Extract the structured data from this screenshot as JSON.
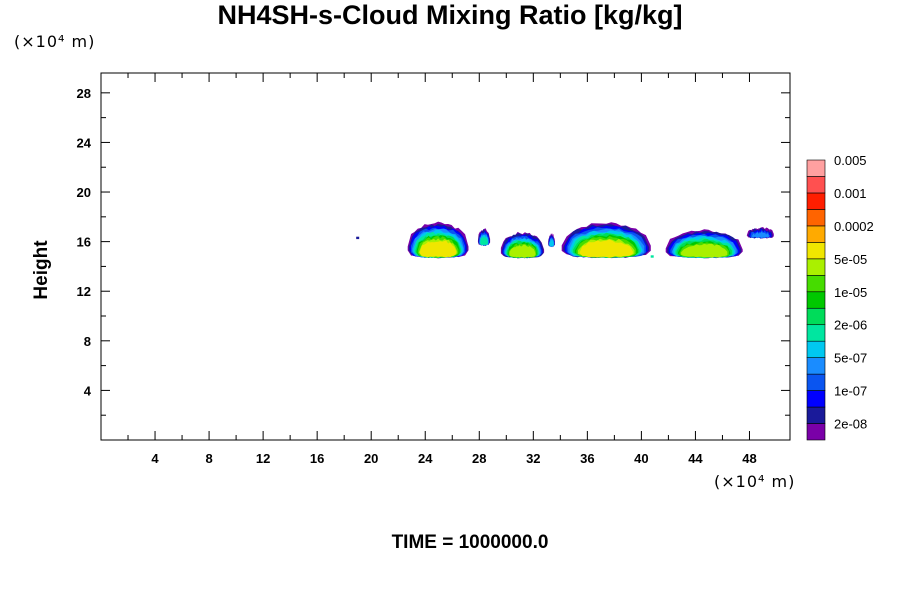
{
  "chart_data": {
    "type": "heatmap",
    "title": "NH4SH-s-Cloud Mixing Ratio [kg/kg]",
    "ylabel": "Height",
    "y_unit": "(×10⁴ m)",
    "x_unit": "(×10⁴ m)",
    "footer": "TIME = 1000000.0",
    "xlim": [
      0,
      51
    ],
    "ylim": [
      0,
      29.6
    ],
    "x_ticks": [
      4,
      8,
      12,
      16,
      20,
      24,
      28,
      32,
      36,
      40,
      44,
      48
    ],
    "y_ticks": [
      4,
      8,
      12,
      16,
      20,
      24,
      28
    ],
    "colorbar": {
      "colors": [
        "#7a00a8",
        "#1a1a9a",
        "#0000ff",
        "#0a55f0",
        "#1a8cff",
        "#00c8f0",
        "#00e6a0",
        "#00dc5a",
        "#00c800",
        "#46dc00",
        "#aaf000",
        "#f0e600",
        "#ffaa00",
        "#ff6400",
        "#ff1e00",
        "#ff5050",
        "#ffa0a0"
      ],
      "labels": [
        "2e-08",
        "1e-07",
        "5e-07",
        "2e-06",
        "1e-05",
        "5e-05",
        "0.0002",
        "0.001",
        "0.005"
      ]
    },
    "cloud_regions": [
      {
        "x_start": 22.7,
        "x_end": 27.2,
        "y_bottom": 14.7,
        "y_top": 17.5,
        "max_level": 11
      },
      {
        "x_start": 27.9,
        "x_end": 28.8,
        "y_bottom": 15.7,
        "y_top": 17.0,
        "max_level": 6
      },
      {
        "x_start": 29.6,
        "x_end": 32.8,
        "y_bottom": 14.7,
        "y_top": 16.7,
        "max_level": 10
      },
      {
        "x_start": 33.1,
        "x_end": 33.6,
        "y_bottom": 15.6,
        "y_top": 16.6,
        "max_level": 5
      },
      {
        "x_start": 34.1,
        "x_end": 40.7,
        "y_bottom": 14.7,
        "y_top": 17.5,
        "max_level": 11
      },
      {
        "x_start": 41.8,
        "x_end": 47.5,
        "y_bottom": 14.7,
        "y_top": 16.9,
        "max_level": 10
      },
      {
        "x_start": 47.8,
        "x_end": 49.8,
        "y_bottom": 16.3,
        "y_top": 17.1,
        "max_level": 4
      }
    ],
    "isolated_points": [
      {
        "x": 19.0,
        "y": 16.3,
        "level": 1
      },
      {
        "x": 40.8,
        "y": 14.8,
        "level": 6
      }
    ]
  }
}
